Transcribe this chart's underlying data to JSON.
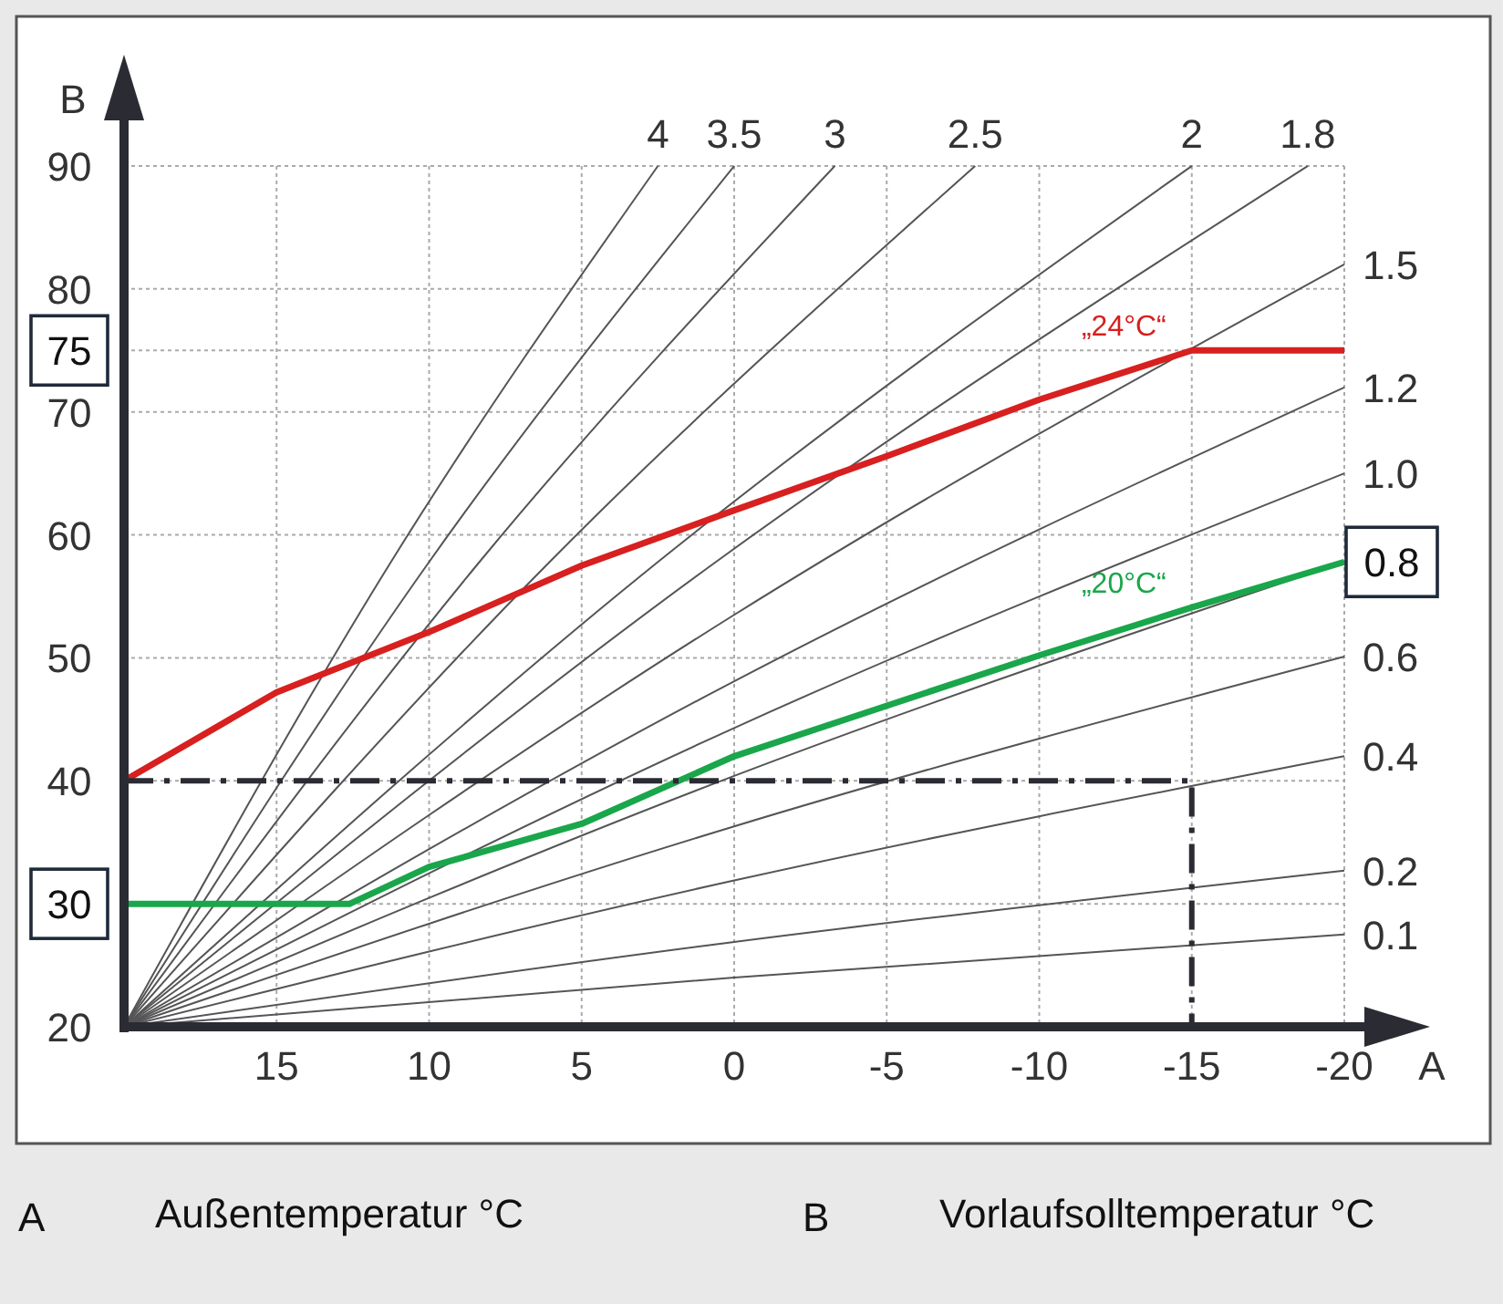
{
  "chart_data": {
    "type": "line",
    "xlabel": "A",
    "ylabel": "B",
    "xlim": [
      20,
      -20
    ],
    "ylim": [
      20,
      90
    ],
    "xticks": [
      15,
      10,
      5,
      0,
      -5,
      -10,
      -15,
      -20
    ],
    "yticks": [
      20,
      {
        "value": 30,
        "label": "30"
      },
      40,
      50,
      60,
      70,
      {
        "value": 75,
        "label": "75"
      },
      80,
      90
    ],
    "grid": true,
    "series": [
      {
        "name": "0.1",
        "color": "#555555",
        "x": [
          20,
          0,
          -20
        ],
        "values": [
          20,
          24.0,
          27.5
        ]
      },
      {
        "name": "0.2",
        "color": "#555555",
        "x": [
          20,
          0,
          -20
        ],
        "values": [
          20,
          26.9,
          32.7
        ]
      },
      {
        "name": "0.4",
        "color": "#555555",
        "x": [
          20,
          0,
          -20
        ],
        "values": [
          20,
          31.9,
          42
        ]
      },
      {
        "name": "0.6",
        "color": "#555555",
        "x": [
          20,
          0,
          -20
        ],
        "values": [
          20,
          36.3,
          50.1
        ]
      },
      {
        "color": "#555555",
        "x": [
          20,
          0,
          -20
        ],
        "values": [
          20,
          40.4,
          57.8
        ]
      },
      {
        "name": "1.0",
        "color": "#555555",
        "x": [
          20,
          0,
          -20
        ],
        "values": [
          20,
          44.3,
          65
        ]
      },
      {
        "name": "1.2",
        "color": "#555555",
        "x": [
          20,
          0,
          -20
        ],
        "values": [
          20,
          48.1,
          72
        ]
      },
      {
        "name": "1.5",
        "color": "#555555",
        "x": [
          20,
          0,
          -20
        ],
        "values": [
          20,
          53.5,
          82
        ]
      },
      {
        "name": "1.8",
        "color": "#555555",
        "x": [
          20,
          0.6,
          -18.8
        ],
        "values": [
          20,
          57.8,
          90
        ]
      },
      {
        "name": "2",
        "color": "#555555",
        "x": [
          20,
          2.5,
          -15
        ],
        "values": [
          20,
          57.8,
          90
        ]
      },
      {
        "name": "2.5",
        "color": "#555555",
        "x": [
          20,
          6.05,
          -7.9
        ],
        "values": [
          20,
          57.8,
          90
        ]
      },
      {
        "name": "3",
        "color": "#555555",
        "x": [
          20,
          8.35,
          -3.3
        ],
        "values": [
          20,
          57.8,
          90
        ]
      },
      {
        "name": "3.5",
        "color": "#555555",
        "x": [
          20,
          10,
          0
        ],
        "values": [
          20,
          57.8,
          90
        ]
      },
      {
        "name": "4",
        "color": "#555555",
        "x": [
          20,
          11.25,
          2.5
        ],
        "values": [
          20,
          57.8,
          90
        ]
      },
      {
        "name": "„24°C“",
        "color": "#d7201f",
        "x": [
          20,
          15,
          10,
          5,
          0,
          -5,
          -10,
          -15,
          -20
        ],
        "values": [
          40,
          47.2,
          52.1,
          57.5,
          62,
          66.4,
          71,
          75,
          75
        ]
      },
      {
        "name": "„20°C“",
        "color": "#1aa64b",
        "x": [
          20,
          12.6,
          10,
          5,
          0,
          -5,
          -10,
          -15,
          -20
        ],
        "values": [
          30,
          30,
          33,
          36.5,
          42,
          46.1,
          50.2,
          54.1,
          57.8
        ]
      },
      {
        "color": "#2b2b33",
        "line_style": "dashed",
        "x": [
          20,
          -15,
          -15
        ],
        "values": [
          40,
          40,
          20
        ]
      }
    ],
    "annotations": [
      "Außentemperatur °C",
      "Vorlaufsolltemperatur °C",
      {
        "text": "0.8",
        "x": -20,
        "y": 57.8
      }
    ]
  }
}
